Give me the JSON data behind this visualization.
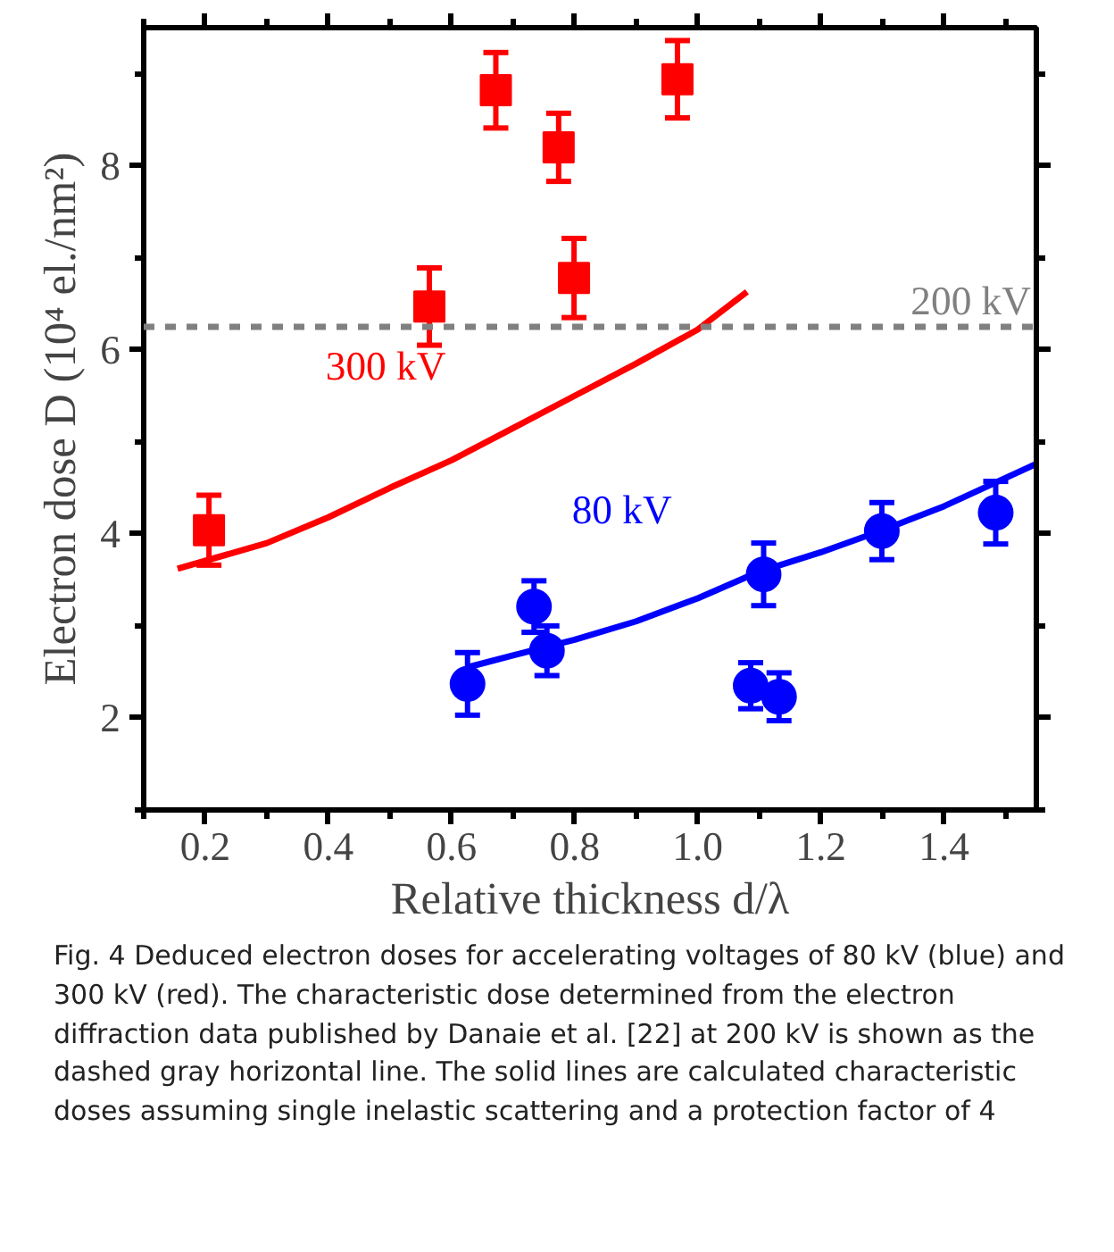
{
  "chart_data": {
    "type": "scatter",
    "xlabel": "Relative thickness d/λ",
    "ylabel": "Electron dose D (10⁴ el./nm²)",
    "xlim": [
      0.1,
      1.55
    ],
    "ylim": [
      1,
      9.5
    ],
    "xticks": [
      0.2,
      0.4,
      0.6,
      0.8,
      {
        "value": 1,
        "label": "1.0"
      },
      1.2,
      1.4
    ],
    "yticks": [
      2,
      4,
      6,
      8
    ],
    "grid": false,
    "legend": false,
    "series": [
      {
        "marker": "square",
        "color": "#ff0000",
        "x": [
          0.206,
          0.564,
          0.672,
          0.774,
          0.799,
          0.967
        ],
        "values": [
          4.04,
          6.47,
          8.82,
          8.2,
          6.78,
          8.94
        ],
        "errors": [
          0.38,
          0.42,
          0.41,
          0.37,
          0.43,
          0.42
        ]
      },
      {
        "type": "line",
        "name": "300 kV",
        "color": "#ff0000",
        "x": [
          0.155,
          0.3,
          0.4,
          0.5,
          0.6,
          0.7,
          0.8,
          0.9,
          1.0,
          1.08
        ],
        "values": [
          3.62,
          3.9,
          4.18,
          4.5,
          4.8,
          5.15,
          5.5,
          5.85,
          6.22,
          6.63
        ]
      },
      {
        "marker": "circle",
        "color": "#0000ff",
        "x": [
          0.626,
          0.734,
          0.755,
          1.086,
          1.107,
          1.132,
          1.299,
          1.484
        ],
        "values": [
          2.37,
          3.21,
          2.73,
          2.35,
          3.56,
          2.23,
          4.03,
          4.23
        ],
        "errors": [
          0.34,
          0.28,
          0.27,
          0.25,
          0.34,
          0.26,
          0.31,
          0.34
        ]
      },
      {
        "type": "line",
        "name": "80 kV",
        "color": "#0000ff",
        "x": [
          0.626,
          0.7,
          0.8,
          0.9,
          1.0,
          1.1,
          1.2,
          1.3,
          1.4,
          1.55
        ],
        "values": [
          2.55,
          2.68,
          2.85,
          3.05,
          3.3,
          3.59,
          3.8,
          4.04,
          4.3,
          4.76
        ]
      }
    ],
    "ref_lines": [
      {
        "axis": "y",
        "value": 6.25,
        "label": "200 kV",
        "color": "#808080",
        "line_style": "dashed"
      }
    ],
    "annotations": [
      "Fig. 4  Deduced electron doses for accelerating voltages of 80 kV (blue) and 300 kV (red). The characteristic dose determined from the electron diffraction data published by Danaie et al. [22] at 200 kV is shown as the dashed gray horizontal line. The solid lines are calculated characteristic doses assuming single inelastic scattering and a protection factor of 4"
    ]
  }
}
